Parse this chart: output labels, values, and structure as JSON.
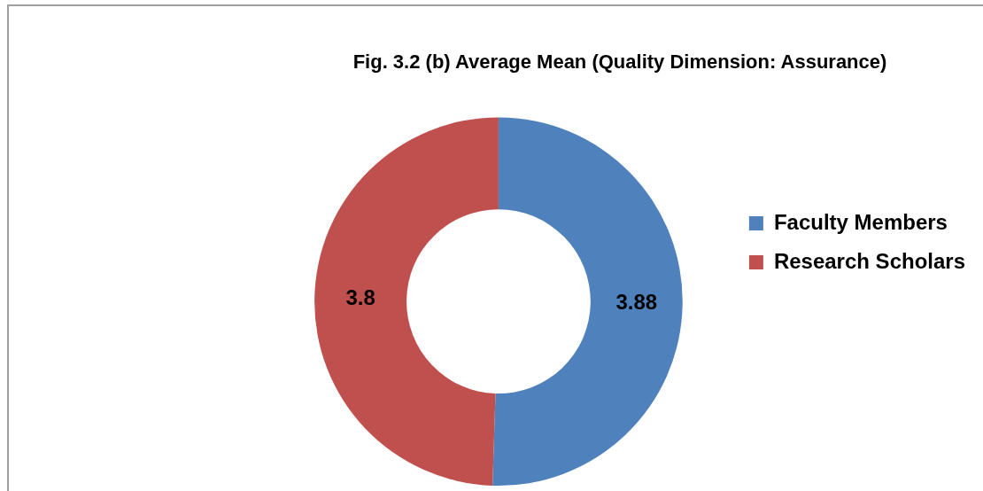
{
  "chart_data": {
    "type": "donut",
    "title": "Fig. 3.2 (b) Average Mean (Quality Dimension: Assurance)",
    "categories": [
      "Faculty Members",
      "Research Scholars"
    ],
    "values": [
      3.88,
      3.8
    ],
    "colors": [
      "#4f81bd",
      "#c0504d"
    ],
    "data_labels": true,
    "legend": "right"
  }
}
